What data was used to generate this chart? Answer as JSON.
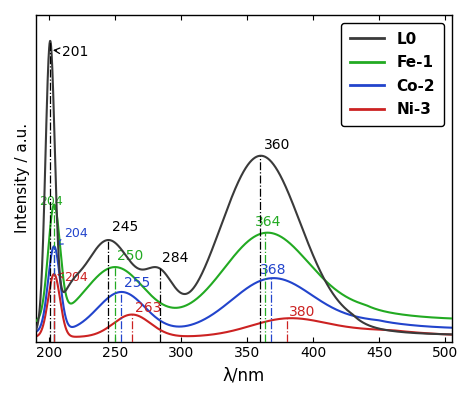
{
  "xlabel": "λ/nm",
  "ylabel": "Intensity / a.u.",
  "xlim": [
    190,
    505
  ],
  "ylim": [
    0.0,
    1.45
  ],
  "colors": {
    "L0": "#3a3a3a",
    "Fe1": "#22aa22",
    "Co2": "#2244cc",
    "Ni3": "#cc2222"
  },
  "legend_labels": [
    "L0",
    "Fe-1",
    "Co-2",
    "Ni-3"
  ],
  "legend_colors": [
    "#3a3a3a",
    "#22aa22",
    "#2244cc",
    "#cc2222"
  ],
  "ann_L0_color": "#000000",
  "ann_Fe1_color": "#22aa22",
  "ann_Co2_color": "#2244cc",
  "ann_Ni3_color": "#cc2222",
  "background_color": "#ffffff",
  "figsize": [
    4.74,
    3.99
  ],
  "dpi": 100
}
